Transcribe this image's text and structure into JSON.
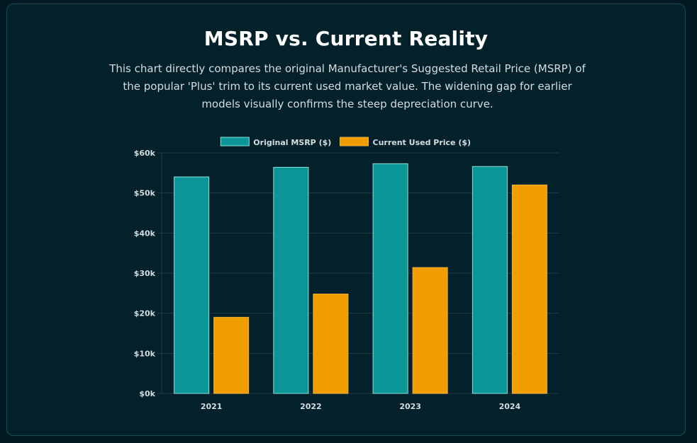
{
  "page": {
    "title": "MSRP vs. Current Reality",
    "subtitle": "This chart directly compares the original Manufacturer's Suggested Retail Price (MSRP) of the popular 'Plus' trim to its current used market value. The widening gap for earlier models visually confirms the steep depreciation curve."
  },
  "colors": {
    "background": "#011a22",
    "card": "#03212a",
    "msrp": "#0a9697",
    "msrp_border": "#8fe0dc",
    "used": "#f09d00",
    "used_border": "#f3b23a",
    "grid": "#1f3d45",
    "tick_text": "#d4dde0"
  },
  "chart_data": {
    "type": "bar",
    "categories": [
      "2021",
      "2022",
      "2023",
      "2024"
    ],
    "series": [
      {
        "name": "Original MSRP ($)",
        "values": [
          54000,
          56400,
          57300,
          56600
        ]
      },
      {
        "name": "Current Used Price ($)",
        "values": [
          19000,
          24800,
          31400,
          52000
        ]
      }
    ],
    "ylim": [
      0,
      60000
    ],
    "yticks": [
      0,
      10000,
      20000,
      30000,
      40000,
      50000,
      60000
    ],
    "ytick_labels": [
      "$0k",
      "$10k",
      "$20k",
      "$30k",
      "$40k",
      "$50k",
      "$60k"
    ],
    "xlabel": "",
    "ylabel": "",
    "grid": true,
    "legend": "top-center"
  }
}
